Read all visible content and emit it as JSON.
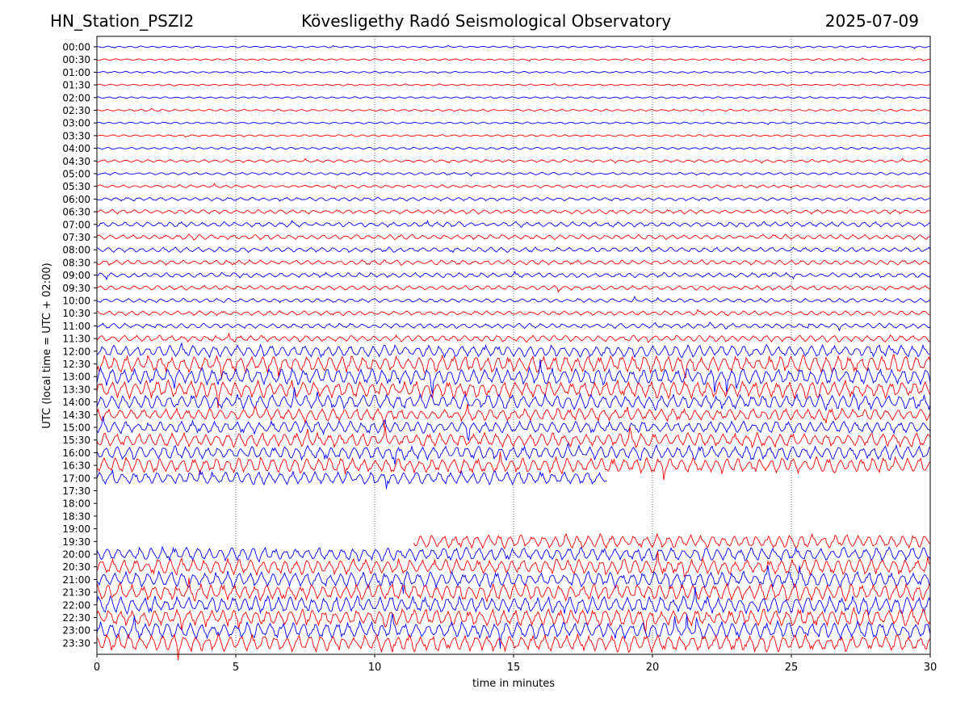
{
  "header": {
    "station": "HN_Station_PSZI2",
    "title": "Kövesligethy Radó Seismological Observatory",
    "date": "2025-07-09"
  },
  "chart_data": {
    "type": "line",
    "title": "Kövesligethy Radó Seismological Observatory",
    "xlabel": "time in minutes",
    "ylabel": "UTC (local time = UTC + 02:00)",
    "xlim": [
      0,
      30
    ],
    "x_ticks": [
      "0",
      "5",
      "10",
      "15",
      "20",
      "25",
      "30"
    ],
    "vertical_gridlines_at": [
      5,
      10,
      15,
      20,
      25
    ],
    "grid": "dotted vertical",
    "colors": {
      "even_hour_trace": "#0000ff",
      "half_hour_trace": "#ff0000",
      "grid": "#000000"
    },
    "rows": [
      {
        "label": "00:00",
        "color": "blue",
        "start": 0,
        "end": 30,
        "activity": 0.05
      },
      {
        "label": "00:30",
        "color": "red",
        "start": 0,
        "end": 30,
        "activity": 0.05
      },
      {
        "label": "01:00",
        "color": "blue",
        "start": 0,
        "end": 30,
        "activity": 0.05
      },
      {
        "label": "01:30",
        "color": "red",
        "start": 0,
        "end": 30,
        "activity": 0.05
      },
      {
        "label": "02:00",
        "color": "blue",
        "start": 0,
        "end": 30,
        "activity": 0.05
      },
      {
        "label": "02:30",
        "color": "red",
        "start": 0,
        "end": 30,
        "activity": 0.06
      },
      {
        "label": "03:00",
        "color": "blue",
        "start": 0,
        "end": 30,
        "activity": 0.06
      },
      {
        "label": "03:30",
        "color": "red",
        "start": 0,
        "end": 30,
        "activity": 0.06
      },
      {
        "label": "04:00",
        "color": "blue",
        "start": 0,
        "end": 30,
        "activity": 0.08
      },
      {
        "label": "04:30",
        "color": "red",
        "start": 0,
        "end": 30,
        "activity": 0.12
      },
      {
        "label": "05:00",
        "color": "blue",
        "start": 0,
        "end": 30,
        "activity": 0.1
      },
      {
        "label": "05:30",
        "color": "red",
        "start": 0,
        "end": 30,
        "activity": 0.12
      },
      {
        "label": "06:00",
        "color": "blue",
        "start": 0,
        "end": 30,
        "activity": 0.15
      },
      {
        "label": "06:30",
        "color": "red",
        "start": 0,
        "end": 30,
        "activity": 0.2
      },
      {
        "label": "07:00",
        "color": "blue",
        "start": 0,
        "end": 30,
        "activity": 0.25
      },
      {
        "label": "07:30",
        "color": "red",
        "start": 0,
        "end": 30,
        "activity": 0.25
      },
      {
        "label": "08:00",
        "color": "blue",
        "start": 0,
        "end": 30,
        "activity": 0.25
      },
      {
        "label": "08:30",
        "color": "red",
        "start": 0,
        "end": 30,
        "activity": 0.25
      },
      {
        "label": "09:00",
        "color": "blue",
        "start": 0,
        "end": 30,
        "activity": 0.25
      },
      {
        "label": "09:30",
        "color": "red",
        "start": 0,
        "end": 30,
        "activity": 0.22
      },
      {
        "label": "10:00",
        "color": "blue",
        "start": 0,
        "end": 30,
        "activity": 0.2
      },
      {
        "label": "10:30",
        "color": "red",
        "start": 0,
        "end": 30,
        "activity": 0.22
      },
      {
        "label": "11:00",
        "color": "blue",
        "start": 0,
        "end": 30,
        "activity": 0.25
      },
      {
        "label": "11:30",
        "color": "red",
        "start": 0,
        "end": 30,
        "activity": 0.35
      },
      {
        "label": "12:00",
        "color": "blue",
        "start": 0,
        "end": 30,
        "activity": 0.7
      },
      {
        "label": "12:30",
        "color": "red",
        "start": 0,
        "end": 30,
        "activity": 1.0
      },
      {
        "label": "13:00",
        "color": "blue",
        "start": 0,
        "end": 30,
        "activity": 1.0
      },
      {
        "label": "13:30",
        "color": "red",
        "start": 0,
        "end": 30,
        "activity": 1.0
      },
      {
        "label": "14:00",
        "color": "blue",
        "start": 0,
        "end": 30,
        "activity": 0.9
      },
      {
        "label": "14:30",
        "color": "red",
        "start": 0,
        "end": 30,
        "activity": 0.7
      },
      {
        "label": "15:00",
        "color": "blue",
        "start": 0,
        "end": 30,
        "activity": 0.7
      },
      {
        "label": "15:30",
        "color": "red",
        "start": 0,
        "end": 30,
        "activity": 0.8
      },
      {
        "label": "16:00",
        "color": "blue",
        "start": 0,
        "end": 30,
        "activity": 0.8
      },
      {
        "label": "16:30",
        "color": "red",
        "start": 0,
        "end": 30,
        "activity": 0.9
      },
      {
        "label": "17:00",
        "color": "blue",
        "start": 0,
        "end": 18.4,
        "activity": 0.8
      },
      {
        "label": "17:30",
        "color": "red",
        "start": null,
        "end": null,
        "activity": 0
      },
      {
        "label": "18:00",
        "color": "blue",
        "start": null,
        "end": null,
        "activity": 0
      },
      {
        "label": "18:30",
        "color": "red",
        "start": null,
        "end": null,
        "activity": 0
      },
      {
        "label": "19:00",
        "color": "blue",
        "start": null,
        "end": null,
        "activity": 0
      },
      {
        "label": "19:30",
        "color": "red",
        "start": 11.4,
        "end": 30,
        "activity": 0.8
      },
      {
        "label": "20:00",
        "color": "blue",
        "start": 0,
        "end": 30,
        "activity": 0.8
      },
      {
        "label": "20:30",
        "color": "red",
        "start": 0,
        "end": 30,
        "activity": 0.9
      },
      {
        "label": "21:00",
        "color": "blue",
        "start": 0,
        "end": 30,
        "activity": 0.9
      },
      {
        "label": "21:30",
        "color": "red",
        "start": 0,
        "end": 30,
        "activity": 1.0
      },
      {
        "label": "22:00",
        "color": "blue",
        "start": 0,
        "end": 30,
        "activity": 1.0
      },
      {
        "label": "22:30",
        "color": "red",
        "start": 0,
        "end": 30,
        "activity": 1.0
      },
      {
        "label": "23:00",
        "color": "blue",
        "start": 0,
        "end": 30,
        "activity": 1.0
      },
      {
        "label": "23:30",
        "color": "red",
        "start": 0,
        "end": 30,
        "activity": 1.0
      }
    ]
  }
}
